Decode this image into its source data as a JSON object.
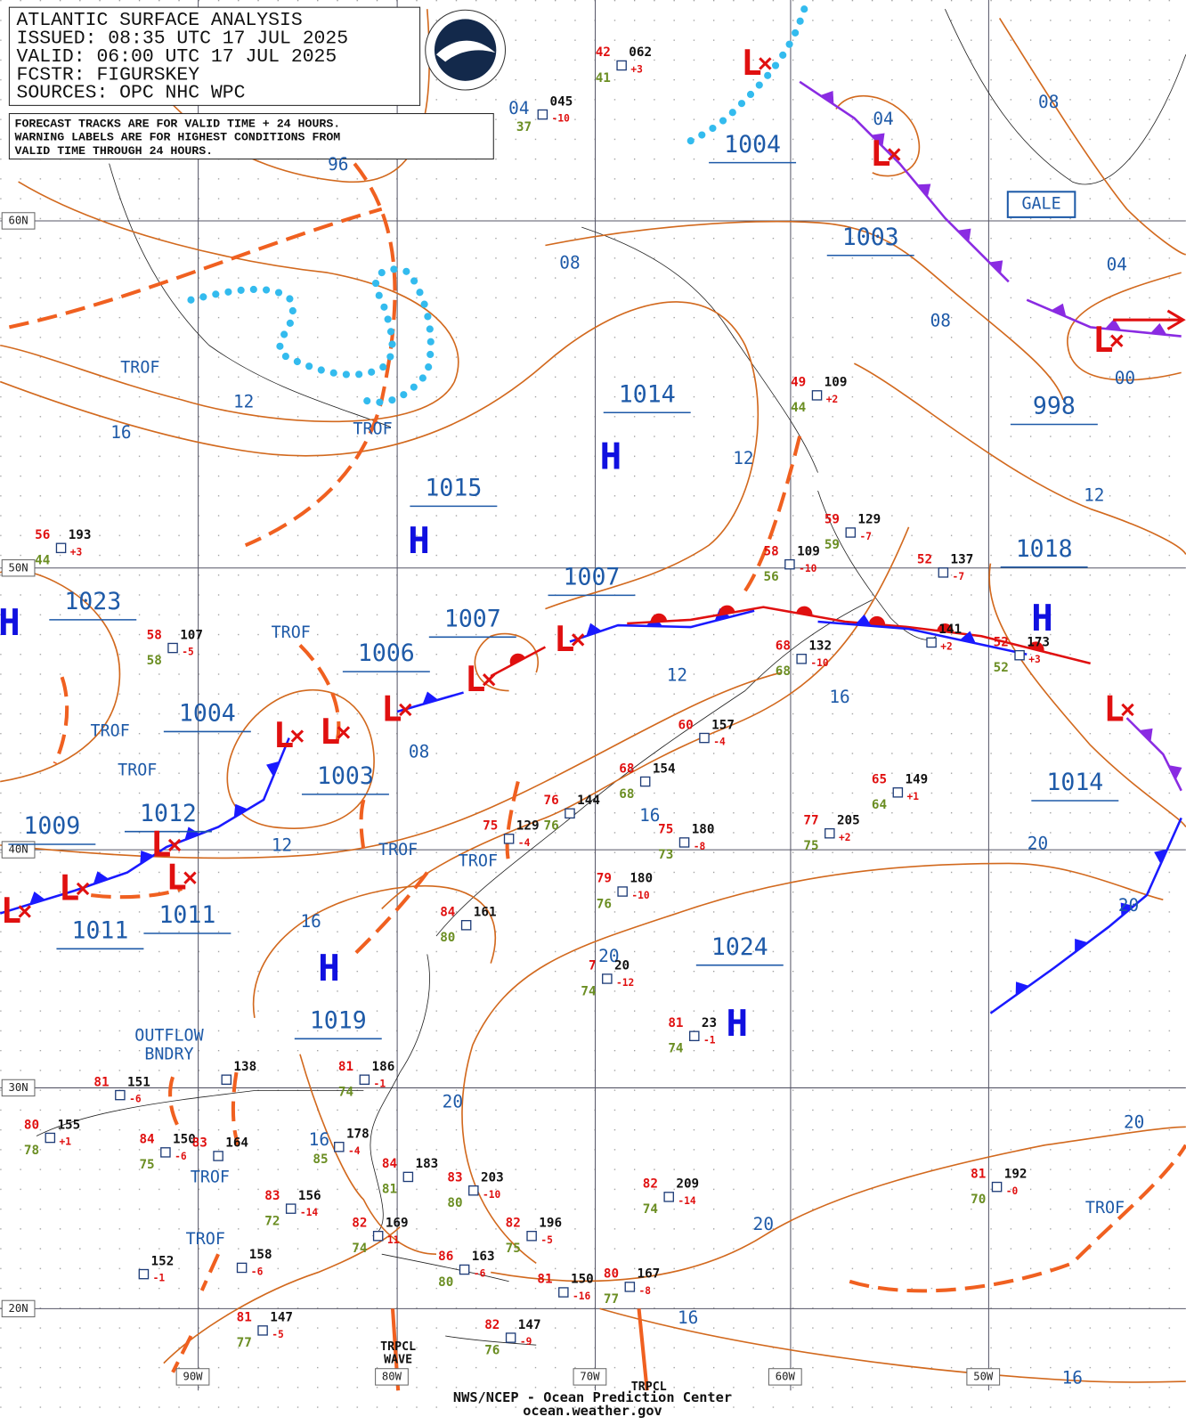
{
  "header": {
    "lines": [
      "ATLANTIC SURFACE ANALYSIS",
      "ISSUED: 08:35 UTC 17 JUL 2025",
      "VALID:  06:00 UTC 17 JUL 2025",
      "FCSTR:  FIGURSKEY",
      "SOURCES: OPC NHC WPC"
    ],
    "notes": [
      "FORECAST TRACKS ARE FOR VALID TIME + 24 HOURS.",
      "WARNING LABELS ARE FOR HIGHEST CONDITIONS FROM",
      "VALID TIME THROUGH 24 HOURS."
    ]
  },
  "symbols": {
    "high": "H",
    "low": "L"
  },
  "pressure_values": [
    "1004",
    "1003",
    "998",
    "1014",
    "1015",
    "1007",
    "1007",
    "1006",
    "1004",
    "1003",
    "1012",
    "1009",
    "1011",
    "1011",
    "1019",
    "1024",
    "1018",
    "1014",
    "1023"
  ],
  "isobar_labels": [
    "96",
    "04",
    "04",
    "08",
    "08",
    "08",
    "04",
    "00",
    "12",
    "16",
    "12",
    "12",
    "12",
    "16",
    "08",
    "16",
    "12",
    "20",
    "20",
    "16",
    "20",
    "20",
    "16",
    "20",
    "20",
    "16",
    "16"
  ],
  "feature_labels": [
    "TROF",
    "TROF",
    "TROF",
    "TROF",
    "TROF",
    "TROF",
    "TROF",
    "TROF",
    "TROF",
    "TROF",
    "OUTFLOW",
    "BNDRY",
    "TRPCL",
    "WAVE",
    "TRPCL",
    "GALE"
  ],
  "grid_labels": [
    "60N",
    "50N",
    "40N",
    "30N",
    "20N",
    "90W",
    "80W",
    "70W",
    "60W",
    "50W"
  ],
  "stations": [
    {
      "temp": "42",
      "pressure": "062",
      "tendency": "+3",
      "dewpoint": "41"
    },
    {
      "pressure": "045",
      "tendency": "-10",
      "dewpoint": "37"
    },
    {
      "temp": "49",
      "pressure": "109",
      "tendency": "+2",
      "dewpoint": "44"
    },
    {
      "temp": "59",
      "pressure": "129",
      "tendency": "-7",
      "dewpoint": "59"
    },
    {
      "temp": "58",
      "pressure": "109",
      "tendency": "-10",
      "dewpoint": "56"
    },
    {
      "temp": "52",
      "pressure": "137",
      "tendency": "-7"
    },
    {
      "pressure": "141",
      "tendency": "+2"
    },
    {
      "temp": "52",
      "pressure": "173",
      "tendency": "+3",
      "dewpoint": "52"
    },
    {
      "temp": "56",
      "pressure": "193",
      "tendency": "+3",
      "dewpoint": "44"
    },
    {
      "temp": "58",
      "pressure": "107",
      "tendency": "-5",
      "dewpoint": "58"
    },
    {
      "temp": "68",
      "pressure": "132",
      "tendency": "-10",
      "dewpoint": "68"
    },
    {
      "temp": "60",
      "pressure": "157",
      "tendency": "-4"
    },
    {
      "temp": "68",
      "pressure": "154",
      "dewpoint": "68"
    },
    {
      "temp": "76",
      "pressure": "144",
      "dewpoint": "76"
    },
    {
      "temp": "75",
      "pressure": "129",
      "tendency": "-4"
    },
    {
      "temp": "65",
      "pressure": "149",
      "tendency": "+1",
      "dewpoint": "64"
    },
    {
      "temp": "77",
      "pressure": "205",
      "tendency": "+2",
      "dewpoint": "75"
    },
    {
      "temp": "75",
      "pressure": "180",
      "tendency": "-8",
      "dewpoint": "73"
    },
    {
      "temp": "79",
      "pressure": "180",
      "tendency": "-10",
      "dewpoint": "76"
    },
    {
      "temp": "84",
      "pressure": "161",
      "dewpoint": "80"
    },
    {
      "temp": "7",
      "pressure": "20",
      "tendency": "-12",
      "dewpoint": "74"
    },
    {
      "temp": "81",
      "pressure": "23",
      "tendency": "-1",
      "dewpoint": "74"
    },
    {
      "temp": "81",
      "pressure": "186",
      "tendency": "-1",
      "dewpoint": "74"
    },
    {
      "temp": "81",
      "pressure": "151",
      "tendency": "-6"
    },
    {
      "temp": "80",
      "pressure": "155",
      "tendency": "+1",
      "dewpoint": "78"
    },
    {
      "temp": "84",
      "pressure": "150",
      "tendency": "-6",
      "dewpoint": "75"
    },
    {
      "temp": "83",
      "pressure": "156",
      "tendency": "-14",
      "dewpoint": "72"
    },
    {
      "pressure": "178",
      "tendency": "-4",
      "dewpoint": "85"
    },
    {
      "temp": "84",
      "pressure": "183",
      "dewpoint": "81"
    },
    {
      "temp": "83",
      "pressure": "203",
      "tendency": "-10",
      "dewpoint": "80"
    },
    {
      "temp": "82",
      "pressure": "209",
      "tendency": "-14",
      "dewpoint": "74"
    },
    {
      "temp": "82",
      "pressure": "196",
      "tendency": "-5",
      "dewpoint": "75"
    },
    {
      "temp": "82",
      "pressure": "169",
      "tendency": "11",
      "dewpoint": "74"
    },
    {
      "temp": "86",
      "pressure": "163",
      "tendency": "-6",
      "dewpoint": "80"
    },
    {
      "temp": "81",
      "pressure": "150",
      "tendency": "-16"
    },
    {
      "temp": "80",
      "pressure": "167",
      "tendency": "-8",
      "dewpoint": "77"
    },
    {
      "pressure": "158",
      "tendency": "-6"
    },
    {
      "pressure": "152",
      "tendency": "-1"
    },
    {
      "temp": "81",
      "pressure": "147",
      "tendency": "-5",
      "dewpoint": "77"
    },
    {
      "temp": "82",
      "pressure": "147",
      "tendency": "-9",
      "dewpoint": "76"
    },
    {
      "temp": "81",
      "pressure": "192",
      "tendency": "-0",
      "dewpoint": "70"
    },
    {
      "pressure": "138"
    },
    {
      "temp": "83",
      "pressure": "164"
    }
  ],
  "footer": {
    "lines": [
      "NWS/NCEP - Ocean Prediction Center",
      "ocean.weather.gov"
    ]
  }
}
